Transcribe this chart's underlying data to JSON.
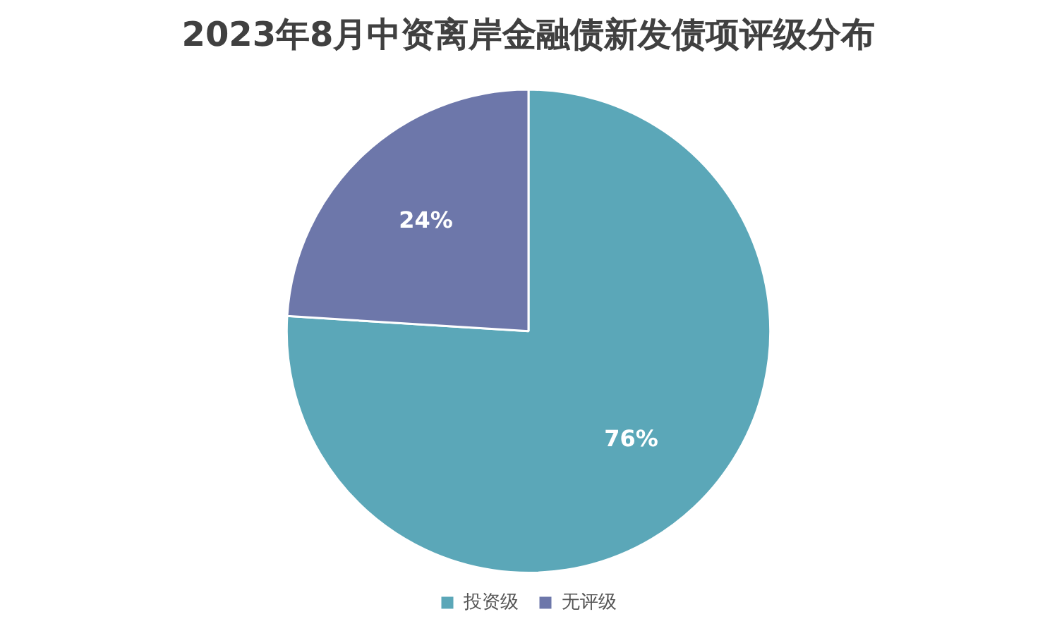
{
  "chart_data": {
    "type": "pie",
    "title": "2023年8月中资离岸金融债新发债项评级分布",
    "categories": [
      "投资级",
      "无评级"
    ],
    "values": [
      76,
      24
    ],
    "colors": [
      "#5ba7b8",
      "#6d77aa"
    ],
    "value_labels": [
      "76%",
      "24%"
    ],
    "legend": "bottom"
  }
}
